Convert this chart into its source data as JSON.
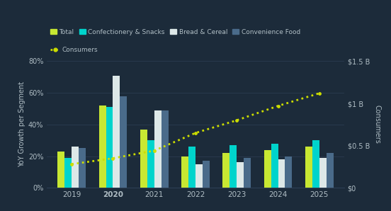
{
  "years": [
    2019,
    2020,
    2021,
    2022,
    2023,
    2024,
    2025
  ],
  "total": [
    23,
    52,
    37,
    20,
    22,
    24,
    26
  ],
  "confec": [
    19,
    51,
    30,
    26,
    27,
    28,
    30
  ],
  "bread": [
    26,
    71,
    49,
    15,
    16,
    18,
    19
  ],
  "convenience": [
    25,
    58,
    49,
    17,
    19,
    20,
    22
  ],
  "consumers_b": [
    0.28,
    0.35,
    0.44,
    0.65,
    0.8,
    0.97,
    1.12
  ],
  "bar_colors": {
    "total": "#c8e832",
    "confec": "#00d4cc",
    "bread": "#dde8e8",
    "convenience": "#4a6b8a"
  },
  "consumer_color": "#ccdd00",
  "bg_color": "#1c2b3a",
  "grid_color": "#2e3f55",
  "text_color": "#b0bec5",
  "ylabel_left": "YoY Growth per Segment",
  "ylabel_right": "Consumers",
  "ylim_left": [
    0,
    80
  ],
  "ylim_right": [
    0,
    1.5
  ],
  "yticks_left": [
    0,
    20,
    40,
    60,
    80
  ],
  "ytick_labels_left": [
    "0%",
    "20%",
    "40%",
    "60%",
    "80%"
  ],
  "yticks_right": [
    0,
    0.5,
    1.0,
    1.5
  ],
  "ytick_labels_right": [
    "$0",
    "$0.5 B",
    "$1 B",
    "$1.5 B"
  ],
  "legend_labels": [
    "Total",
    "Confectionery & Snacks",
    "Bread & Cereal",
    "Convenience Food"
  ],
  "consumer_legend": "Consumers",
  "bold_year": 2020
}
